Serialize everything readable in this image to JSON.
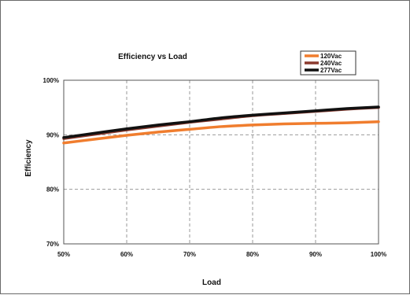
{
  "chart_data": {
    "type": "line",
    "title": "Efficiency vs Load",
    "xlabel": "Load",
    "ylabel": "Efficiency",
    "x": [
      50,
      55,
      60,
      65,
      70,
      75,
      80,
      85,
      90,
      95,
      100
    ],
    "x_ticks": [
      "50%",
      "60%",
      "70%",
      "80%",
      "90%",
      "100%"
    ],
    "y_ticks": [
      "70%",
      "80%",
      "90%",
      "100%"
    ],
    "xlim": [
      50,
      100
    ],
    "ylim": [
      70,
      100
    ],
    "grid": true,
    "legend_position": "top-right",
    "series": [
      {
        "name": "120Vac",
        "color": "#f07d2e",
        "values": [
          88.5,
          89.2,
          89.9,
          90.5,
          91.0,
          91.5,
          91.8,
          92.0,
          92.1,
          92.2,
          92.4
        ]
      },
      {
        "name": "240Vac",
        "color": "#8b3a2e",
        "values": [
          89.3,
          90.1,
          90.9,
          91.6,
          92.3,
          92.9,
          93.5,
          93.9,
          94.3,
          94.7,
          95.0
        ]
      },
      {
        "name": "277Vac",
        "color": "#111111",
        "values": [
          89.5,
          90.3,
          91.1,
          91.8,
          92.4,
          93.1,
          93.6,
          94.0,
          94.4,
          94.8,
          95.1
        ]
      }
    ]
  }
}
